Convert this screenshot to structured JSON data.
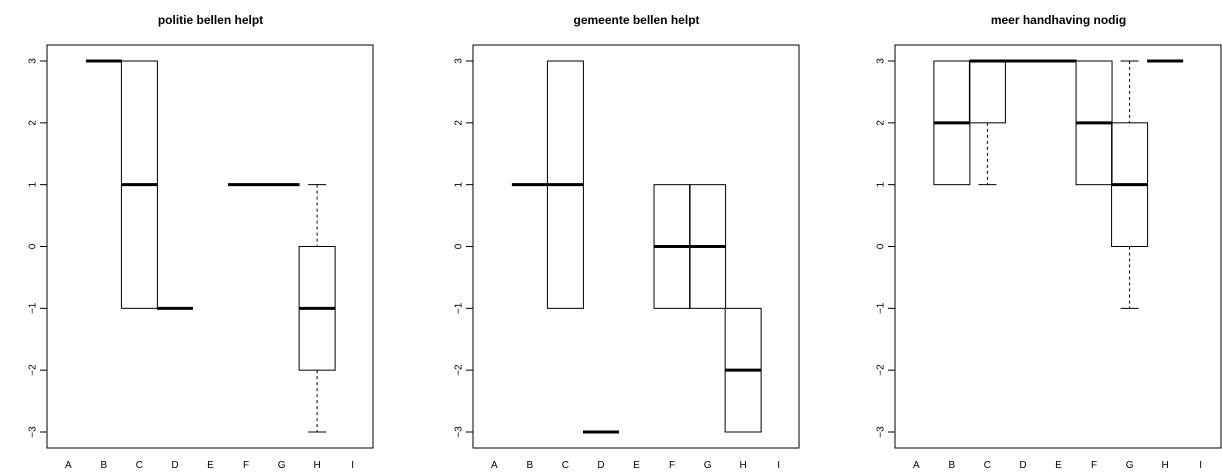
{
  "chart_data": [
    {
      "type": "boxplot",
      "title": "politie bellen helpt",
      "categories": [
        "A",
        "B",
        "C",
        "D",
        "E",
        "F",
        "G",
        "H",
        "I"
      ],
      "ylim": [
        -3,
        3
      ],
      "yticks": [
        3,
        2,
        1,
        0,
        -1,
        -2,
        -3
      ],
      "ytick_labels": [
        "3",
        "2",
        "1",
        "0",
        "−1",
        "−2",
        "−3"
      ],
      "boxes": [
        null,
        {
          "whisker_low": 3,
          "q1": 3,
          "median": 3,
          "q3": 3,
          "whisker_high": 3
        },
        {
          "whisker_low": -1,
          "q1": -1,
          "median": 1,
          "q3": 3,
          "whisker_high": 3
        },
        {
          "whisker_low": -1,
          "q1": -1,
          "median": -1,
          "q3": -1,
          "whisker_high": -1
        },
        null,
        {
          "whisker_low": 1,
          "q1": 1,
          "median": 1,
          "q3": 1,
          "whisker_high": 1
        },
        {
          "whisker_low": 1,
          "q1": 1,
          "median": 1,
          "q3": 1,
          "whisker_high": 1
        },
        {
          "whisker_low": -3,
          "q1": -2,
          "median": -1,
          "q3": 0,
          "whisker_high": 1
        },
        null
      ]
    },
    {
      "type": "boxplot",
      "title": "gemeente bellen helpt",
      "categories": [
        "A",
        "B",
        "C",
        "D",
        "E",
        "F",
        "G",
        "H",
        "I"
      ],
      "ylim": [
        -3,
        3
      ],
      "yticks": [
        3,
        2,
        1,
        0,
        -1,
        -2,
        -3
      ],
      "ytick_labels": [
        "3",
        "2",
        "1",
        "0",
        "−1",
        "−2",
        "−3"
      ],
      "boxes": [
        null,
        {
          "whisker_low": 1,
          "q1": 1,
          "median": 1,
          "q3": 1,
          "whisker_high": 1
        },
        {
          "whisker_low": -1,
          "q1": -1,
          "median": 1,
          "q3": 3,
          "whisker_high": 3
        },
        {
          "whisker_low": -3,
          "q1": -3,
          "median": -3,
          "q3": -3,
          "whisker_high": -3
        },
        null,
        {
          "whisker_low": -1,
          "q1": -1,
          "median": 0,
          "q3": 1,
          "whisker_high": 1
        },
        {
          "whisker_low": -1,
          "q1": -1,
          "median": 0,
          "q3": 1,
          "whisker_high": 1
        },
        {
          "whisker_low": -3,
          "q1": -3,
          "median": -2,
          "q3": -1,
          "whisker_high": -1
        },
        null
      ]
    },
    {
      "type": "boxplot",
      "title": "meer handhaving nodig",
      "categories": [
        "A",
        "B",
        "C",
        "D",
        "E",
        "F",
        "G",
        "H",
        "I"
      ],
      "ylim": [
        -3,
        3
      ],
      "yticks": [
        3,
        2,
        1,
        0,
        -1,
        -2,
        -3
      ],
      "ytick_labels": [
        "3",
        "2",
        "1",
        "0",
        "−1",
        "−2",
        "−3"
      ],
      "boxes": [
        null,
        {
          "whisker_low": 1,
          "q1": 1,
          "median": 2,
          "q3": 3,
          "whisker_high": 3
        },
        {
          "whisker_low": 1,
          "q1": 2,
          "median": 3,
          "q3": 3,
          "whisker_high": 3
        },
        {
          "whisker_low": 3,
          "q1": 3,
          "median": 3,
          "q3": 3,
          "whisker_high": 3
        },
        {
          "whisker_low": 3,
          "q1": 3,
          "median": 3,
          "q3": 3,
          "whisker_high": 3
        },
        {
          "whisker_low": 1,
          "q1": 1,
          "median": 2,
          "q3": 3,
          "whisker_high": 3
        },
        {
          "whisker_low": -1,
          "q1": 0,
          "median": 1,
          "q3": 2,
          "whisker_high": 3
        },
        {
          "whisker_low": 3,
          "q1": 3,
          "median": 3,
          "q3": 3,
          "whisker_high": 3
        },
        null
      ]
    }
  ]
}
